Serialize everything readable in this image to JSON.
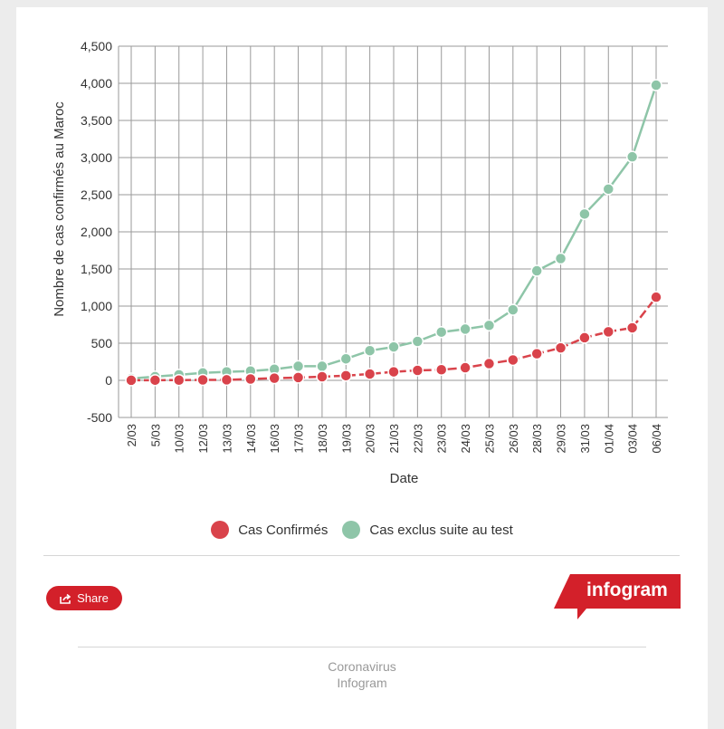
{
  "chart_data": {
    "type": "line",
    "title": "",
    "xlabel": "Date",
    "ylabel": "Nombre de cas confirmés au Maroc",
    "ylim": [
      -500,
      4500
    ],
    "yticks": [
      -500,
      0,
      500,
      1000,
      1500,
      2000,
      2500,
      3000,
      3500,
      4000,
      4500
    ],
    "ytick_labels": [
      "-500",
      "0",
      "500",
      "1,000",
      "1,500",
      "2,000",
      "2,500",
      "3,000",
      "3,500",
      "4,000",
      "4,500"
    ],
    "grid": true,
    "legend_position": "bottom",
    "categories": [
      "2/03",
      "5/03",
      "10/03",
      "12/03",
      "13/03",
      "14/03",
      "16/03",
      "17/03",
      "18/03",
      "19/03",
      "20/03",
      "21/03",
      "22/03",
      "23/03",
      "24/03",
      "25/03",
      "26/03",
      "28/03",
      "29/03",
      "31/03",
      "01/04",
      "03/04",
      "06/04"
    ],
    "series": [
      {
        "name": "Cas Confirmés",
        "color": "#d9434b",
        "values": [
          1,
          2,
          3,
          6,
          7,
          18,
          29,
          38,
          49,
          63,
          86,
          115,
          134,
          143,
          170,
          225,
          275,
          358,
          437,
          574,
          654,
          708,
          1120
        ]
      },
      {
        "name": "Cas exclus suite au test",
        "color": "#8ec5a8",
        "values": [
          25,
          50,
          75,
          100,
          115,
          125,
          150,
          190,
          190,
          290,
          400,
          450,
          525,
          650,
          690,
          740,
          950,
          1475,
          1640,
          2240,
          2575,
          3010,
          3975
        ]
      }
    ]
  },
  "share_label": "Share",
  "brand": "infogram",
  "brand_color": "#d3202a",
  "footer": {
    "line1": "Coronavirus",
    "line2": "Infogram"
  }
}
